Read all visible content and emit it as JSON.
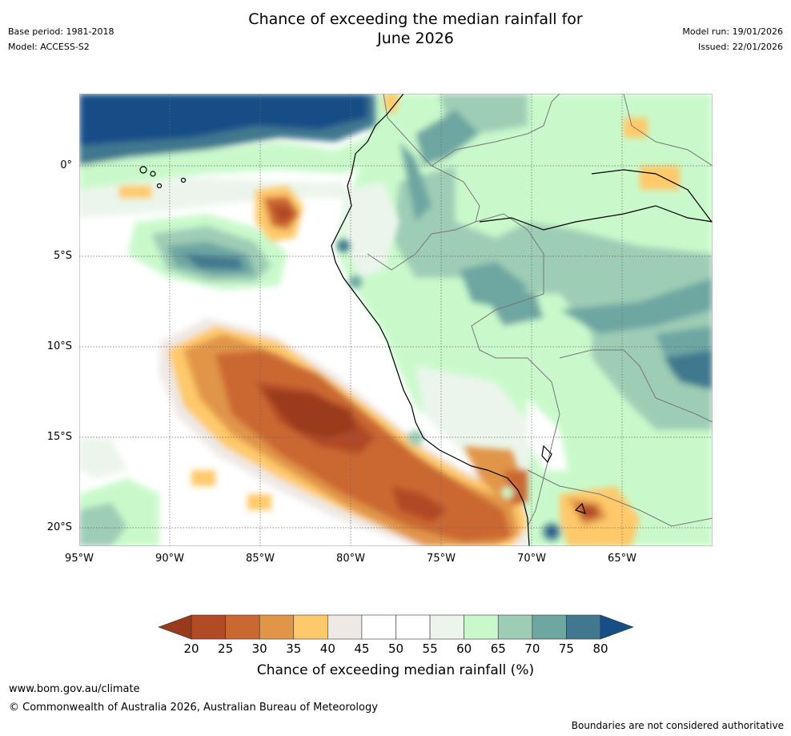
{
  "title": {
    "line1": "Chance of exceeding the median rainfall for",
    "line2": "June 2026"
  },
  "meta": {
    "base_period": "Base period: 1981-2018",
    "model": "Model: ACCESS-S2",
    "model_run": "Model run: 19/01/2026",
    "issued": "Issued: 22/01/2026"
  },
  "map": {
    "region": "Western South America (Peru, Ecuador, Bolivia, Brazil) and Eastern Pacific",
    "lon_range": [
      -95,
      -60
    ],
    "lat_range": [
      -21,
      4
    ],
    "lat_labels": [
      "0°",
      "5°S",
      "10°S",
      "15°S",
      "20°S"
    ],
    "lon_labels": [
      "95°W",
      "90°W",
      "85°W",
      "80°W",
      "75°W",
      "70°W",
      "65°W"
    ],
    "lat_values": [
      0,
      -5,
      -10,
      -15,
      -20
    ],
    "lon_values": [
      -95,
      -90,
      -85,
      -80,
      -75,
      -70,
      -65
    ]
  },
  "colorbar": {
    "title": "Chance of exceeding median rainfall (%)",
    "ticks": [
      "20",
      "25",
      "30",
      "35",
      "40",
      "45",
      "50",
      "55",
      "60",
      "65",
      "70",
      "75",
      "80"
    ],
    "colors": [
      "#9a3a1c",
      "#b24a26",
      "#cb6730",
      "#e19548",
      "#fec96b",
      "#efe9e6",
      "#ffffff",
      "#ffffff",
      "#ebf5eb",
      "#c9f9cb",
      "#9ecdb6",
      "#6ea6a2",
      "#41788f",
      "#164e87"
    ],
    "low_arrow_color": "#9a3a1c",
    "high_arrow_color": "#164e87"
  },
  "footer": {
    "url": "www.bom.gov.au/climate",
    "copyright": "© Commonwealth of Australia 2026, Australian Bureau of Meteorology",
    "disclaimer": "Boundaries are not considered authoritative"
  }
}
